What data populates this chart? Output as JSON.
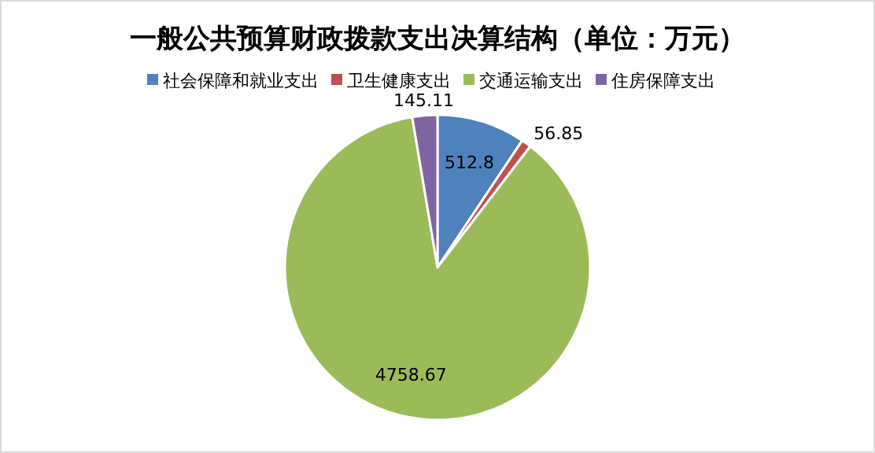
{
  "chart_data": {
    "type": "pie",
    "title": "一般公共预算财政拨款支出决算结构（单位：万元）",
    "categories": [
      "社会保障和就业支出",
      "卫生健康支出",
      "交通运输支出",
      "住房保障支出"
    ],
    "values": [
      512.8,
      56.85,
      4758.67,
      145.11
    ],
    "colors": [
      "#4f81bd",
      "#c0504d",
      "#9bbb59",
      "#8064a2"
    ],
    "data_labels": true,
    "legend": "top"
  }
}
